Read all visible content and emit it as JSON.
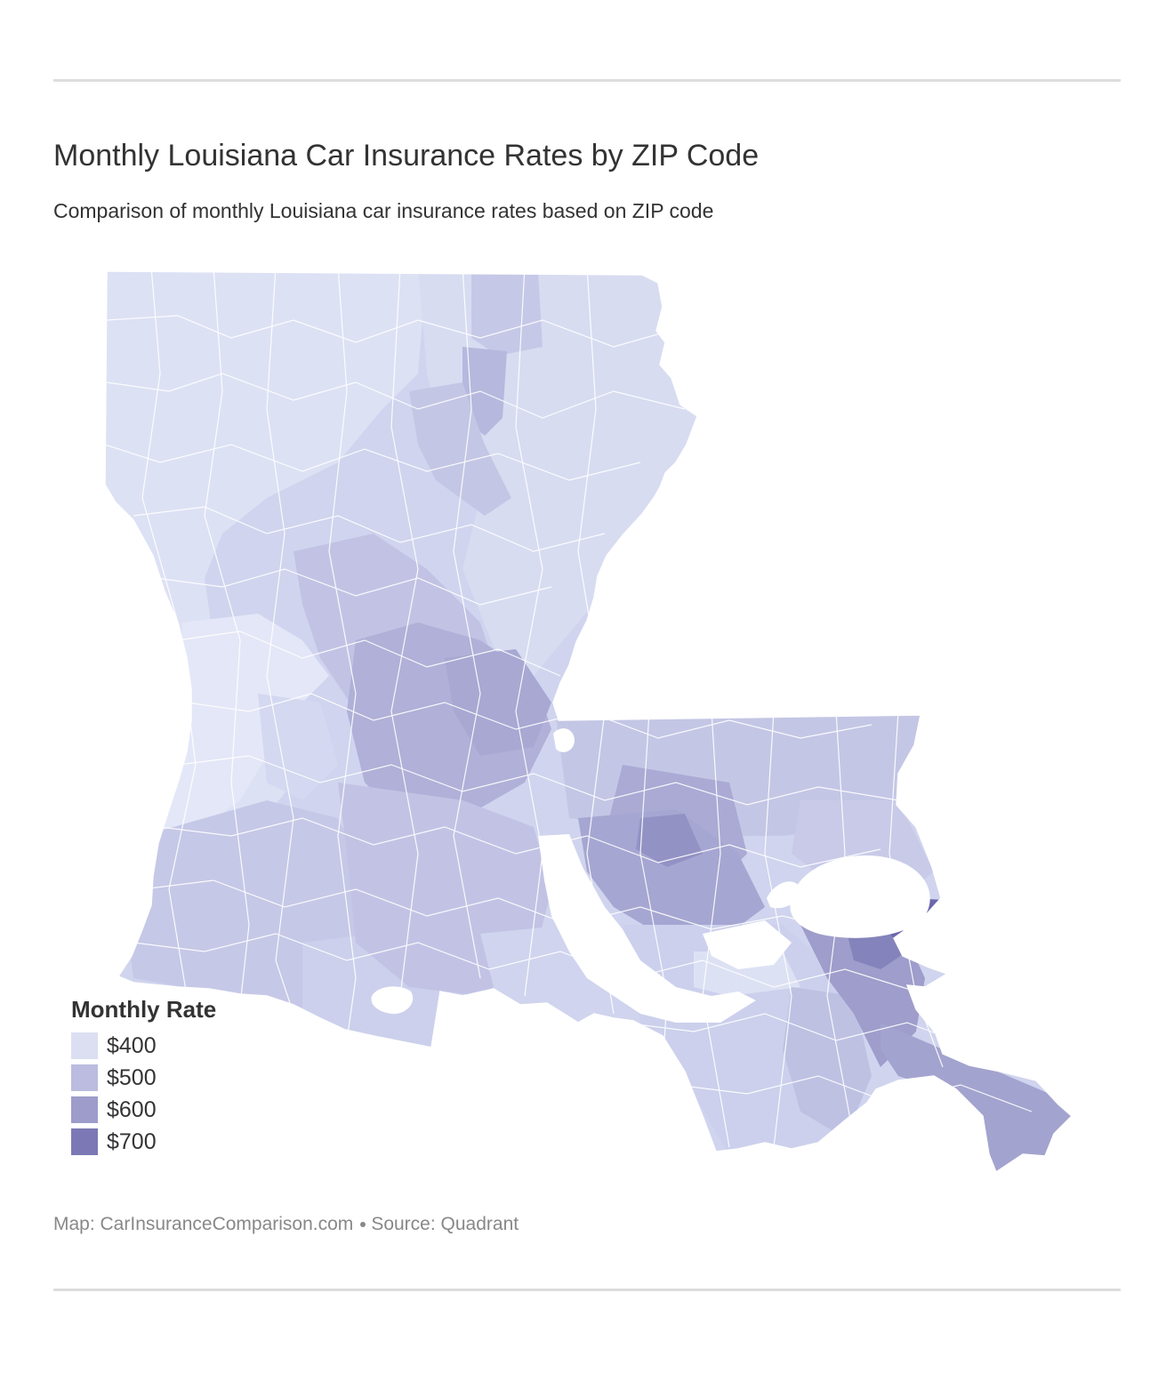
{
  "header": {
    "title": "Monthly Louisiana Car Insurance Rates by ZIP Code",
    "subtitle": "Comparison of monthly Louisiana car insurance rates based on ZIP code"
  },
  "legend": {
    "title": "Monthly Rate",
    "items": [
      {
        "label": "$400",
        "color": "#dcdff2"
      },
      {
        "label": "$500",
        "color": "#bbbcdf"
      },
      {
        "label": "$600",
        "color": "#9d9ccb"
      },
      {
        "label": "$700",
        "color": "#7b78b5"
      }
    ]
  },
  "map": {
    "region": "Louisiana",
    "colors": {
      "low": "#dde1f4",
      "light": "#d0d4ee",
      "mid": "#c4c6e5",
      "midhigh": "#b0b0d8",
      "high": "#9e9dcb",
      "top": "#6c67ad",
      "border": "#ffffff"
    }
  },
  "footer": {
    "map_credit": "Map: CarInsuranceComparison.com",
    "source": "Source: Quadrant"
  }
}
